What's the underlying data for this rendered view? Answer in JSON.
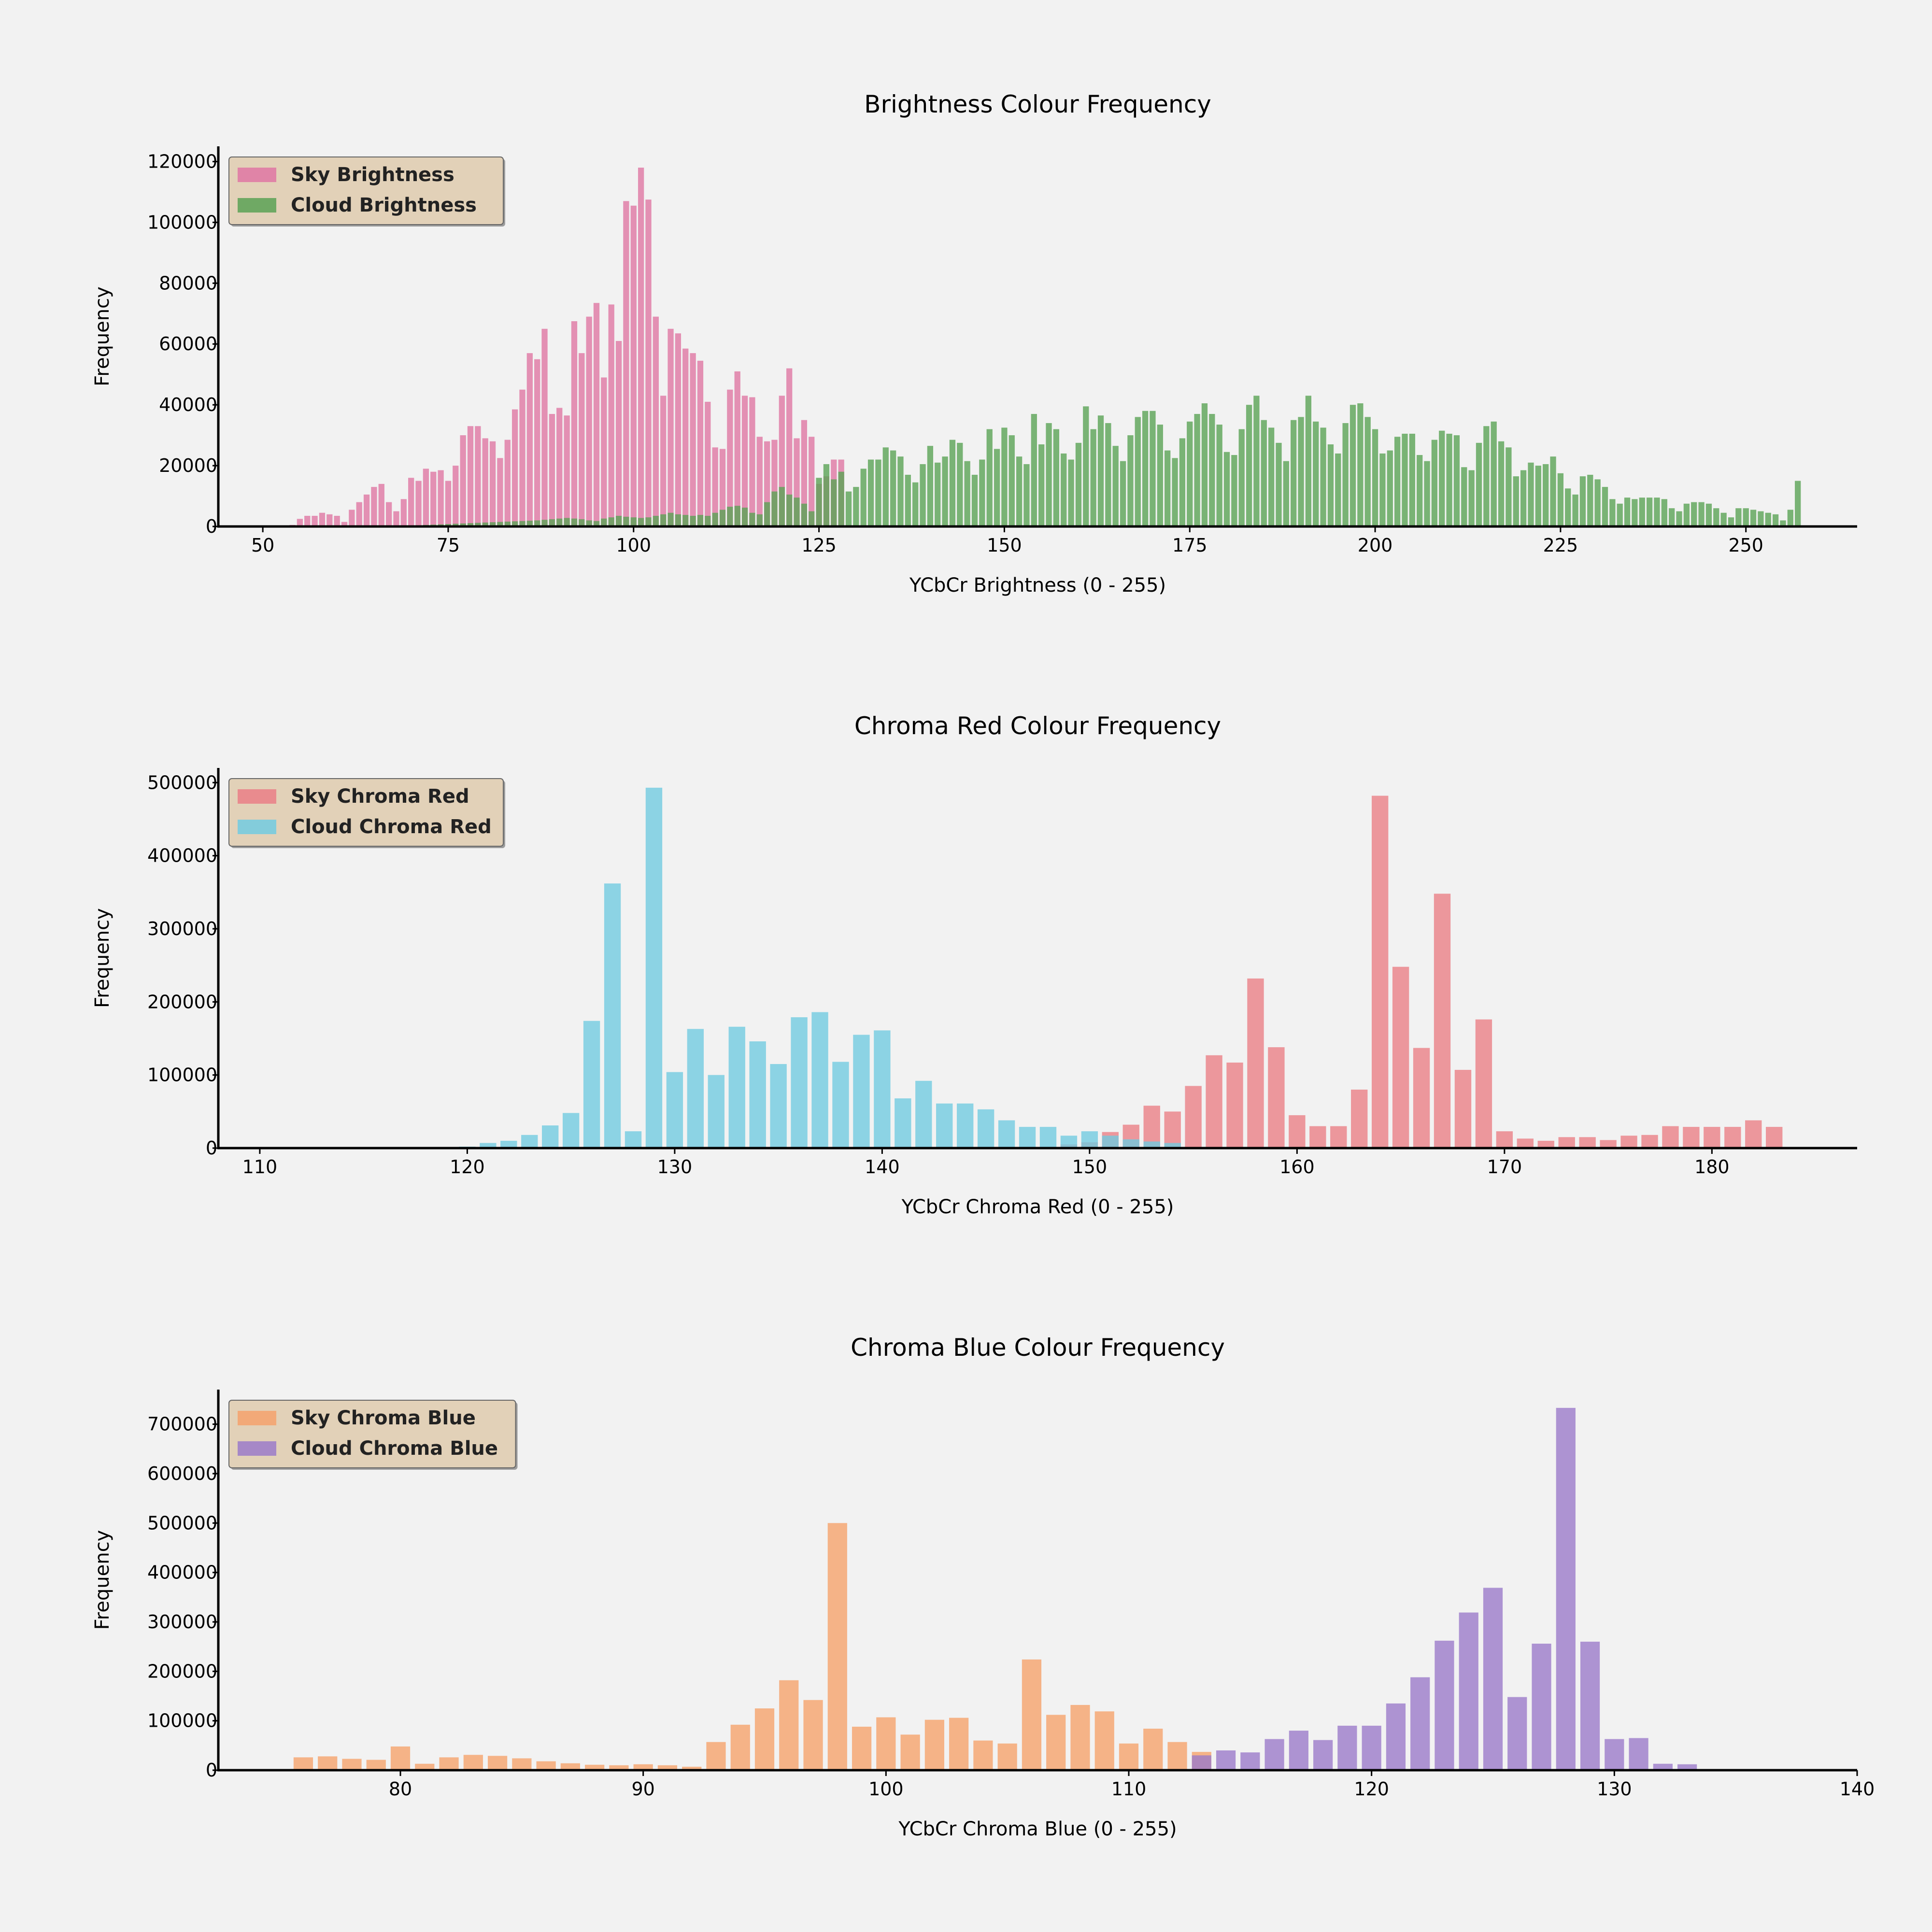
{
  "chart_data": [
    {
      "type": "bar",
      "title": "Brightness Colour Frequency",
      "xlabel": "YCbCr Brightness (0 - 255)",
      "ylabel": "Frequency",
      "xlim": [
        44,
        265
      ],
      "ylim": [
        0,
        125000
      ],
      "xticks": [
        50,
        75,
        100,
        125,
        150,
        175,
        200,
        225,
        250
      ],
      "yticks": [
        0,
        20000,
        40000,
        60000,
        80000,
        100000,
        120000
      ],
      "legend_position": "top-left",
      "bar_width": 0.8,
      "series": [
        {
          "name": "Sky Brightness",
          "color": "#df77a3",
          "x_start": 54,
          "values": [
            500,
            2500,
            3500,
            3500,
            4500,
            4000,
            3500,
            1500,
            5500,
            8000,
            10500,
            13000,
            14000,
            8000,
            5000,
            9000,
            16000,
            15000,
            19000,
            18000,
            18500,
            15000,
            20000,
            30000,
            33000,
            33000,
            29000,
            28000,
            22500,
            28500,
            38500,
            45000,
            57000,
            55000,
            65000,
            37000,
            39000,
            36500,
            67500,
            57000,
            69000,
            73500,
            49000,
            73000,
            61000,
            107000,
            105500,
            118000,
            107500,
            69000,
            43000,
            65000,
            63500,
            58500,
            57000,
            54500,
            41000,
            26000,
            25500,
            45000,
            51000,
            43000,
            42500,
            29500,
            28000,
            28500,
            43000,
            52000,
            29000,
            35000,
            29500,
            14000,
            16500,
            22000,
            22000
          ]
        },
        {
          "name": "Cloud Brightness",
          "color": "#5aa255",
          "x_start": 70,
          "values": [
            300,
            400,
            500,
            600,
            700,
            800,
            900,
            1000,
            1100,
            1200,
            1300,
            1400,
            1500,
            1600,
            1700,
            1800,
            1900,
            2000,
            2200,
            2400,
            2600,
            2800,
            2600,
            2400,
            2000,
            1800,
            2600,
            3000,
            3500,
            3200,
            3000,
            2800,
            3000,
            3500,
            4000,
            4500,
            4000,
            3800,
            3500,
            3800,
            3500,
            4500,
            5500,
            6500,
            6800,
            6200,
            4500,
            4000,
            8000,
            11500,
            13000,
            10500,
            9500,
            7500,
            5000,
            16000,
            20500,
            15500,
            18000,
            11500,
            13000,
            19000,
            22000,
            22000,
            26000,
            25000,
            23000,
            17000,
            14500,
            20500,
            26500,
            21000,
            23000,
            28500,
            27500,
            21500,
            17000,
            22000,
            32000,
            25500,
            32500,
            30000,
            23000,
            20500,
            37000,
            27000,
            34000,
            32000,
            24000,
            22000,
            27500,
            39500,
            32000,
            36500,
            34000,
            26500,
            21500,
            30000,
            36000,
            38000,
            38000,
            33500,
            25000,
            22500,
            29000,
            34500,
            37000,
            40500,
            37000,
            33500,
            24500,
            23500,
            32000,
            40000,
            43000,
            35000,
            32500,
            27500,
            21500,
            35000,
            36000,
            43000,
            34500,
            32500,
            27000,
            24000,
            34000,
            40000,
            40500,
            36000,
            32000,
            24000,
            25000,
            29500,
            30500,
            30500,
            23500,
            21500,
            28500,
            31500,
            30500,
            30000,
            19500,
            18500,
            27500,
            33000,
            34500,
            28000,
            26000,
            16500,
            18500,
            21000,
            20000,
            20500,
            23000,
            17500,
            12500,
            10500,
            16500,
            17000,
            15500,
            13000,
            9000,
            7500,
            9500,
            9000,
            9500,
            9500,
            9500,
            9000,
            6000,
            5000,
            7500,
            8000,
            8000,
            7500,
            6000,
            4500,
            3000,
            6000,
            6000,
            5500,
            5000,
            4500,
            4000,
            2000,
            5500,
            15000
          ]
        }
      ]
    },
    {
      "type": "bar",
      "title": "Chroma Red Colour Frequency",
      "xlabel": "YCbCr Chroma Red (0 - 255)",
      "ylabel": "Frequency",
      "xlim": [
        108,
        187
      ],
      "ylim": [
        0,
        520000
      ],
      "xticks": [
        110,
        120,
        130,
        140,
        150,
        160,
        170,
        180
      ],
      "yticks": [
        0,
        100000,
        200000,
        300000,
        400000,
        500000
      ],
      "legend_position": "top-left",
      "bar_width": 0.8,
      "series": [
        {
          "name": "Sky Chroma Red",
          "color": "#ea7f86",
          "x_start": 149,
          "values": [
            5000,
            8000,
            22000,
            32000,
            58000,
            50000,
            85000,
            127000,
            117000,
            232000,
            138000,
            45000,
            30000,
            30000,
            80000,
            482000,
            248000,
            137000,
            348000,
            107000,
            176000,
            23000,
            13000,
            10000,
            15000,
            15000,
            11000,
            17000,
            18000,
            30000,
            29000,
            29000,
            29000,
            38000,
            29000
          ]
        },
        {
          "name": "Cloud Chroma Red",
          "color": "#72cbe0",
          "x_start": 110,
          "values": [
            500,
            500,
            500,
            500,
            500,
            500,
            500,
            500,
            1000,
            1500,
            2000,
            7000,
            10000,
            18000,
            31000,
            48000,
            174000,
            362000,
            23000,
            493000,
            104000,
            163000,
            100000,
            166000,
            146000,
            115000,
            179000,
            186000,
            118000,
            155000,
            161000,
            68000,
            92000,
            61000,
            61000,
            53000,
            38000,
            29000,
            29000,
            17000,
            23000,
            17000,
            12000,
            9000,
            7000
          ]
        }
      ]
    },
    {
      "type": "bar",
      "title": "Chroma Blue Colour Frequency",
      "xlabel": "YCbCr Chroma Blue (0 - 255)",
      "ylabel": "Frequency",
      "xlim": [
        72.5,
        140
      ],
      "ylim": [
        0,
        770000
      ],
      "xticks": [
        80,
        90,
        100,
        110,
        120,
        130,
        140
      ],
      "yticks": [
        0,
        100000,
        200000,
        300000,
        400000,
        500000,
        600000,
        700000
      ],
      "legend_position": "top-left",
      "bar_width": 0.8,
      "series": [
        {
          "name": "Sky Chroma Blue",
          "color": "#f5a26c",
          "x_start": 76,
          "values": [
            26000,
            28000,
            23000,
            21000,
            48000,
            13000,
            26000,
            31000,
            29000,
            24000,
            18000,
            14000,
            11000,
            10000,
            12000,
            10000,
            7000,
            57000,
            92000,
            125000,
            182000,
            142000,
            500000,
            88000,
            107000,
            72000,
            102000,
            106000,
            60000,
            54000,
            224000,
            112000,
            132000,
            119000,
            54000,
            84000,
            57000,
            37000
          ]
        },
        {
          "name": "Cloud Chroma Blue",
          "color": "#9b7bc9",
          "x_start": 113,
          "values": [
            30000,
            40000,
            36000,
            63000,
            80000,
            61000,
            90000,
            90000,
            135000,
            188000,
            262000,
            319000,
            369000,
            148000,
            256000,
            733000,
            260000,
            63000,
            65000,
            13000,
            12000
          ]
        }
      ]
    }
  ]
}
